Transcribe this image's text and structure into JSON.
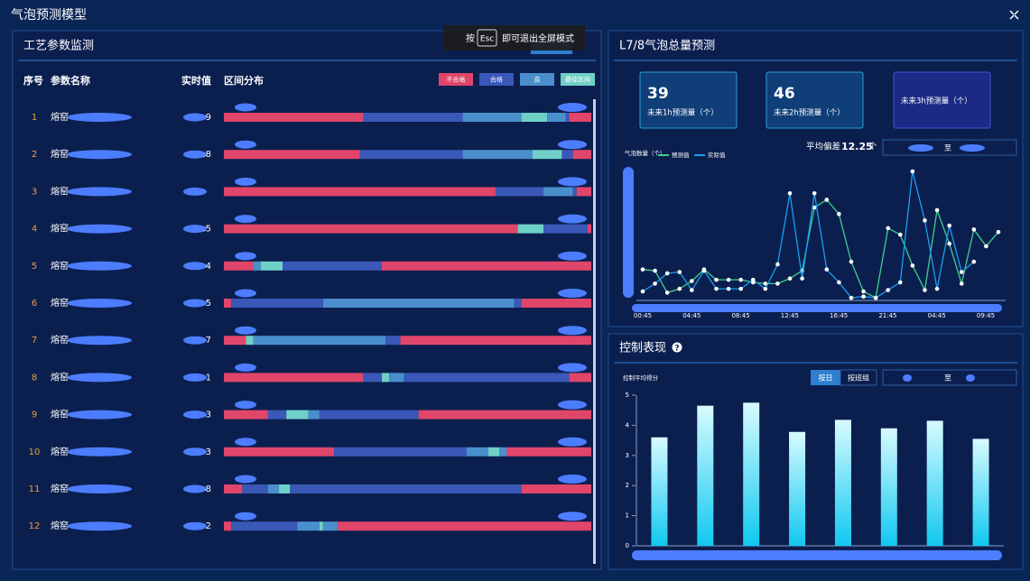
{
  "header": {
    "title": "气泡预测模型"
  },
  "toast": {
    "prefix": "按",
    "key": "Esc",
    "suffix": "即可退出全屏模式"
  },
  "monitor": {
    "title": "工艺参数监测",
    "columns": [
      "序号",
      "参数名称",
      "实时值",
      "区间分布"
    ],
    "legend": [
      {
        "label": "不合格",
        "color": "#e0456a"
      },
      {
        "label": "合格",
        "color": "#3a58b8"
      },
      {
        "label": "良",
        "color": "#4a8fcc"
      },
      {
        "label": "最佳区间",
        "color": "#6fd0c8"
      }
    ],
    "rows": [
      {
        "index": "1",
        "name": "熔窑",
        "value": "9",
        "segments": [
          {
            "color": "#e0456a",
            "width": 38
          },
          {
            "color": "#3a58b8",
            "width": 27
          },
          {
            "color": "#4a8fcc",
            "width": 16
          },
          {
            "color": "#6fd0c8",
            "width": 7
          },
          {
            "color": "#4a8fcc",
            "width": 5
          },
          {
            "color": "#3a58b8",
            "width": 1
          },
          {
            "color": "#e0456a",
            "width": 6
          }
        ]
      },
      {
        "index": "2",
        "name": "熔窑",
        "value": ".8",
        "segments": [
          {
            "color": "#e0456a",
            "width": 37
          },
          {
            "color": "#3a58b8",
            "width": 28
          },
          {
            "color": "#4a8fcc",
            "width": 19
          },
          {
            "color": "#6fd0c8",
            "width": 8
          },
          {
            "color": "#3a58b8",
            "width": 3
          },
          {
            "color": "#e0456a",
            "width": 5
          }
        ]
      },
      {
        "index": "3",
        "name": "熔窑",
        "value": "",
        "segments": [
          {
            "color": "#e0456a",
            "width": 74
          },
          {
            "color": "#3a58b8",
            "width": 13
          },
          {
            "color": "#4a8fcc",
            "width": 8
          },
          {
            "color": "#3a58b8",
            "width": 1
          },
          {
            "color": "#e0456a",
            "width": 4
          }
        ]
      },
      {
        "index": "4",
        "name": "熔窑",
        "value": ".5",
        "segments": [
          {
            "color": "#e0456a",
            "width": 80
          },
          {
            "color": "#6fd0c8",
            "width": 7
          },
          {
            "color": "#3a58b8",
            "width": 12
          },
          {
            "color": "#e0456a",
            "width": 1
          }
        ]
      },
      {
        "index": "5",
        "name": "熔窑",
        "value": "4",
        "segments": [
          {
            "color": "#e0456a",
            "width": 8
          },
          {
            "color": "#4a8fcc",
            "width": 2
          },
          {
            "color": "#6fd0c8",
            "width": 6
          },
          {
            "color": "#3a58b8",
            "width": 27
          },
          {
            "color": "#e0456a",
            "width": 57
          }
        ]
      },
      {
        "index": "6",
        "name": "熔窑",
        "value": "5",
        "segments": [
          {
            "color": "#e0456a",
            "width": 2
          },
          {
            "color": "#3a58b8",
            "width": 25
          },
          {
            "color": "#4a8fcc",
            "width": 52
          },
          {
            "color": "#3a58b8",
            "width": 2
          },
          {
            "color": "#e0456a",
            "width": 19
          }
        ]
      },
      {
        "index": "7",
        "name": "熔窑",
        "value": "7",
        "segments": [
          {
            "color": "#e0456a",
            "width": 6
          },
          {
            "color": "#6fd0c8",
            "width": 2
          },
          {
            "color": "#4a8fcc",
            "width": 36
          },
          {
            "color": "#3a58b8",
            "width": 4
          },
          {
            "color": "#e0456a",
            "width": 52
          }
        ]
      },
      {
        "index": "8",
        "name": "熔窑",
        "value": "1",
        "segments": [
          {
            "color": "#e0456a",
            "width": 38
          },
          {
            "color": "#3a58b8",
            "width": 5
          },
          {
            "color": "#6fd0c8",
            "width": 2
          },
          {
            "color": "#4a8fcc",
            "width": 4
          },
          {
            "color": "#3a58b8",
            "width": 45
          },
          {
            "color": "#e0456a",
            "width": 6
          }
        ]
      },
      {
        "index": "9",
        "name": "熔窑",
        "value": "3",
        "segments": [
          {
            "color": "#e0456a",
            "width": 12
          },
          {
            "color": "#3a58b8",
            "width": 5
          },
          {
            "color": "#6fd0c8",
            "width": 6
          },
          {
            "color": "#4a8fcc",
            "width": 3
          },
          {
            "color": "#3a58b8",
            "width": 27
          },
          {
            "color": "#e0456a",
            "width": 47
          }
        ]
      },
      {
        "index": "10",
        "name": "熔窑",
        "value": "3",
        "segments": [
          {
            "color": "#e0456a",
            "width": 30
          },
          {
            "color": "#3a58b8",
            "width": 36
          },
          {
            "color": "#4a8fcc",
            "width": 6
          },
          {
            "color": "#6fd0c8",
            "width": 3
          },
          {
            "color": "#4a8fcc",
            "width": 2
          },
          {
            "color": "#e0456a",
            "width": 23
          }
        ]
      },
      {
        "index": "11",
        "name": "熔窑",
        "value": "8",
        "segments": [
          {
            "color": "#e0456a",
            "width": 5
          },
          {
            "color": "#3a58b8",
            "width": 7
          },
          {
            "color": "#4a8fcc",
            "width": 3
          },
          {
            "color": "#6fd0c8",
            "width": 3
          },
          {
            "color": "#3a58b8",
            "width": 63
          },
          {
            "color": "#e0456a",
            "width": 19
          }
        ]
      },
      {
        "index": "12",
        "name": "熔窑",
        "value": "2",
        "segments": [
          {
            "color": "#e0456a",
            "width": 2
          },
          {
            "color": "#3a58b8",
            "width": 18
          },
          {
            "color": "#4a8fcc",
            "width": 6
          },
          {
            "color": "#6fd0c8",
            "width": 1
          },
          {
            "color": "#4a8fcc",
            "width": 4
          },
          {
            "color": "#e0456a",
            "width": 69
          }
        ]
      }
    ]
  },
  "forecast": {
    "title": "L7/8气泡总量预测",
    "cards": [
      {
        "value": "39",
        "label": "未来1h预测量（个）"
      },
      {
        "value": "46",
        "label": "未来2h预测量（个）"
      },
      {
        "value": "",
        "label": "未来3h预测量（个）"
      }
    ],
    "deviation": {
      "label": "平均偏差",
      "value": "12.25",
      "unit": "个"
    },
    "range_separator": "至",
    "chart": {
      "type": "line",
      "y_label": "气泡数量（个）",
      "ylim": [
        0,
        100
      ],
      "x_labels": [
        "00:45",
        "04:45",
        "08:45",
        "12:45",
        "16:45",
        "21:45",
        "04:45",
        "09:45"
      ],
      "series": [
        {
          "name": "预测值",
          "color": "#3fd08a",
          "values": [
            24,
            23,
            6,
            9,
            15,
            24,
            16,
            16,
            16,
            14,
            13,
            13,
            17,
            23,
            72,
            78,
            67,
            30,
            7,
            2,
            56,
            51,
            27,
            8,
            70,
            44,
            13,
            55,
            42,
            53
          ]
        },
        {
          "name": "实际值",
          "color": "#1a9ef0",
          "values": [
            7,
            13,
            21,
            22,
            8,
            23,
            9,
            9,
            9,
            16,
            9,
            28,
            83,
            17,
            83,
            24,
            14,
            2,
            3,
            2,
            8,
            14,
            100,
            62,
            9,
            58,
            22,
            30,
            null,
            null
          ]
        }
      ]
    }
  },
  "control": {
    "title": "控制表现",
    "buttons": [
      "按日",
      "按班组"
    ],
    "range_separator": "至",
    "chart": {
      "type": "bar",
      "y_label": "控制平均得分",
      "ylim": [
        0,
        5
      ],
      "yticks": [
        0,
        1,
        2,
        3,
        4,
        5
      ],
      "values": [
        3.6,
        4.65,
        4.75,
        3.78,
        4.18,
        3.9,
        4.15,
        3.55
      ]
    }
  }
}
